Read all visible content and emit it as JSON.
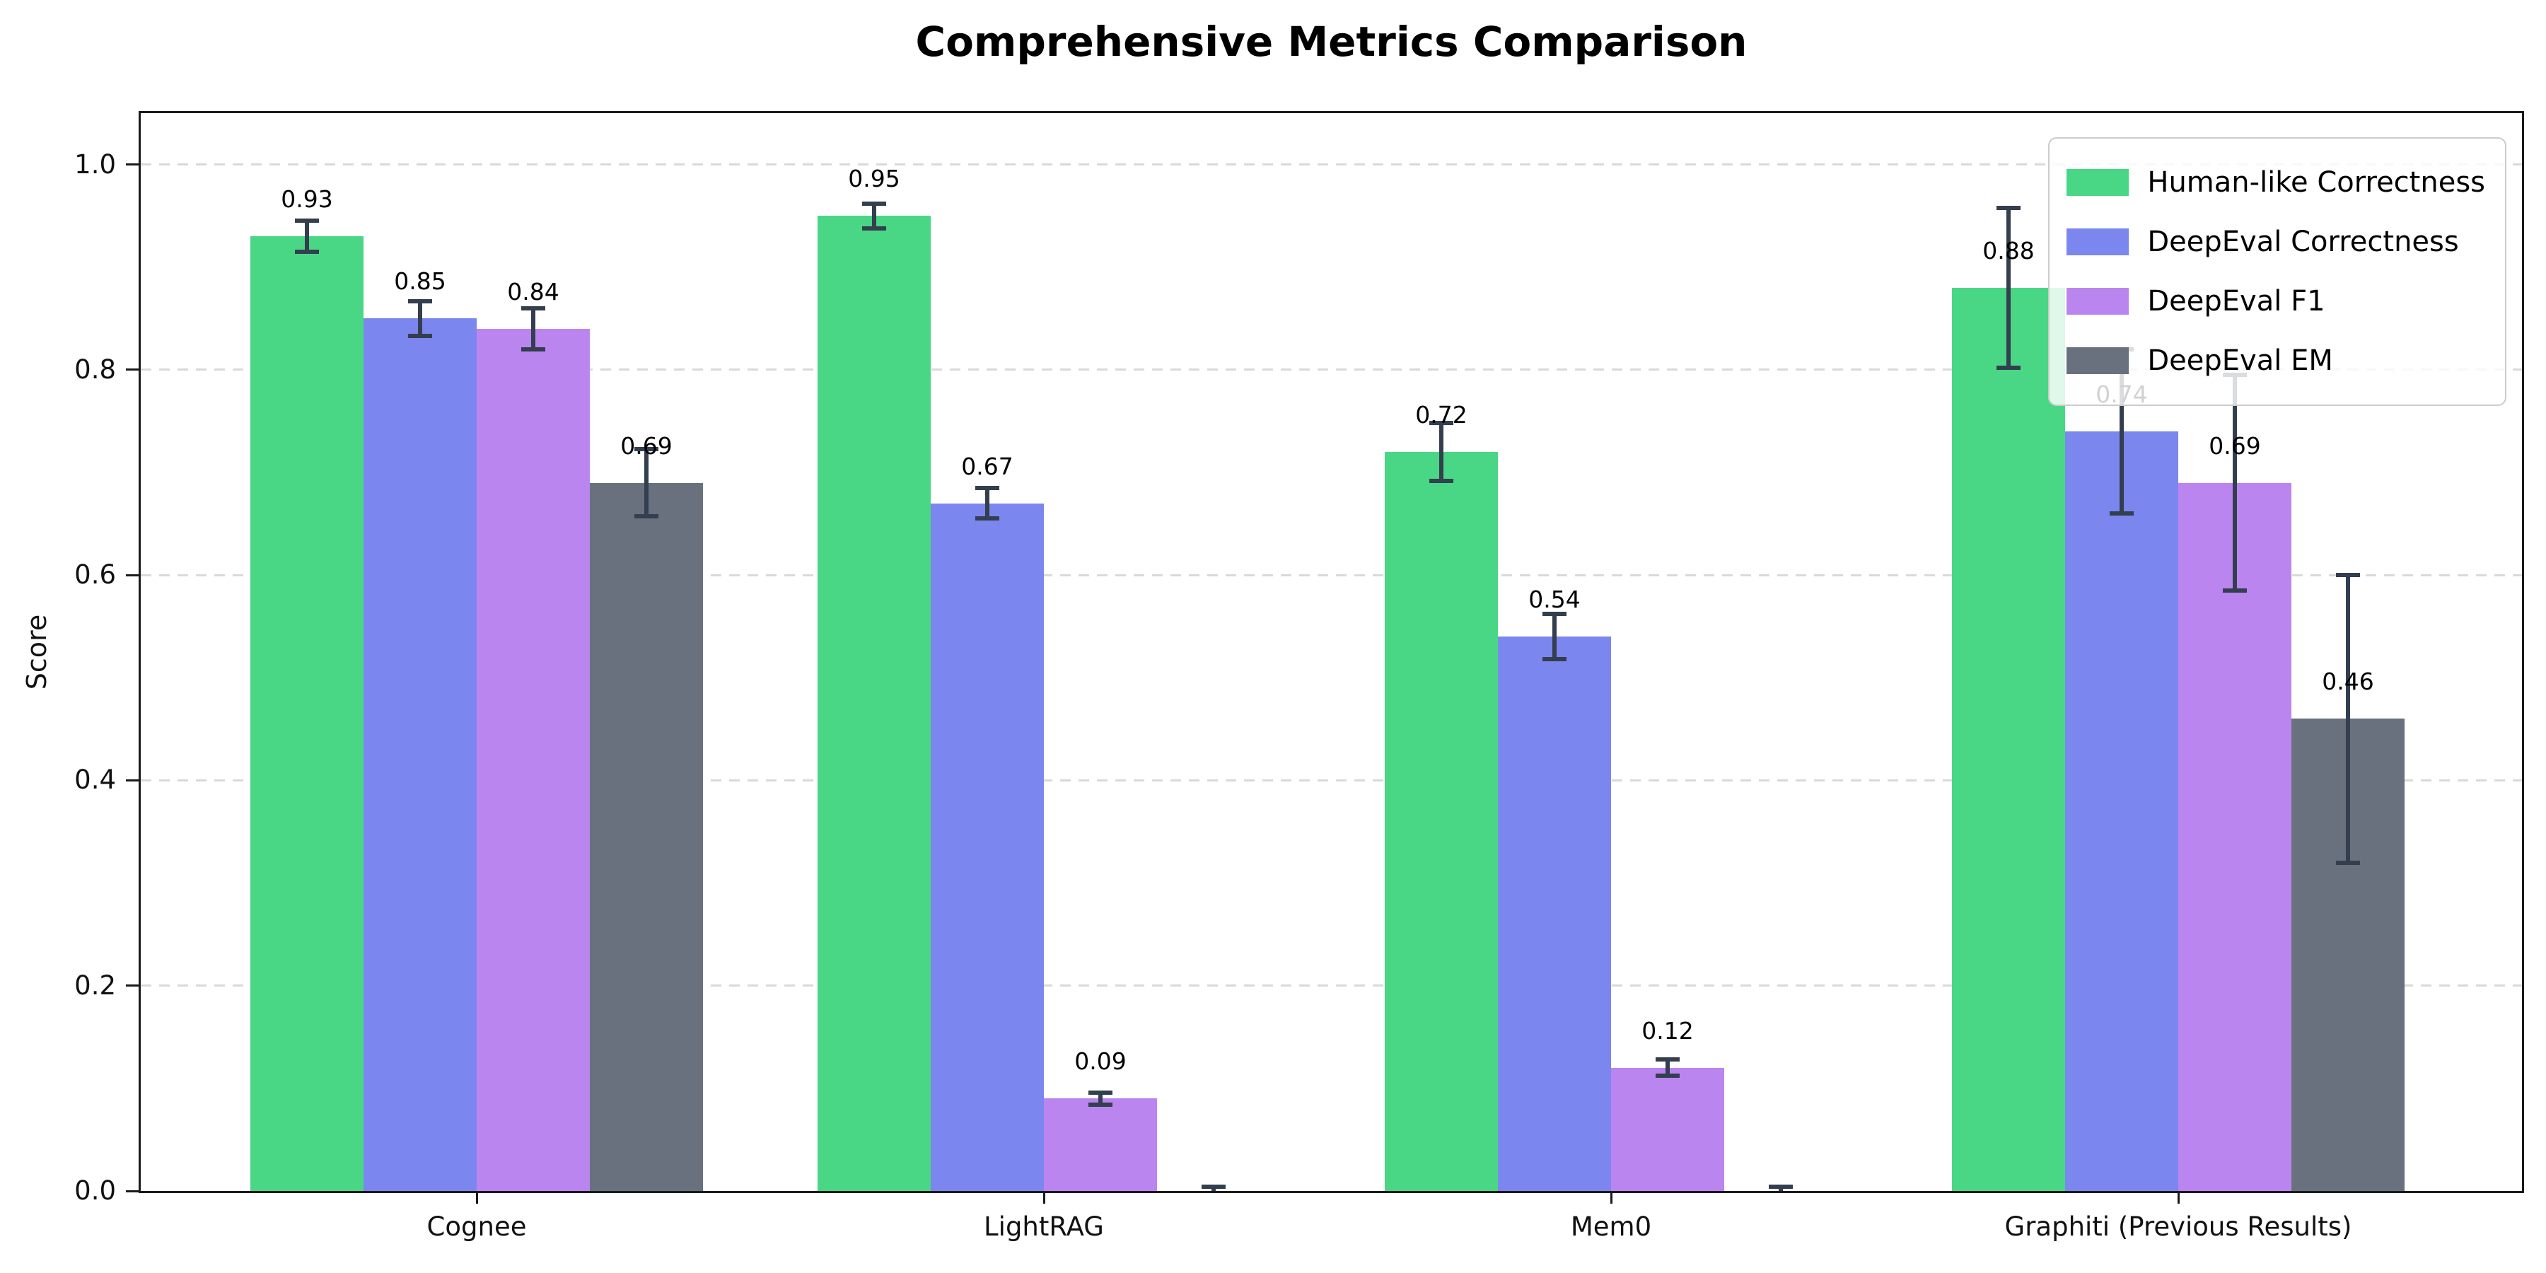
{
  "chart_data": {
    "type": "bar",
    "title": "Comprehensive Metrics Comparison",
    "ylabel": "Score",
    "categories": [
      "Cognee",
      "LightRAG",
      "Mem0",
      "Graphiti (Previous Results)"
    ],
    "series": [
      {
        "name": "Human-like Correctness",
        "color": "#49d786",
        "values": [
          0.93,
          0.95,
          0.72,
          0.88
        ],
        "errors": [
          0.015,
          0.012,
          0.028,
          0.078
        ],
        "bar_labels": [
          "0.93",
          "0.95",
          "0.72",
          "0.88"
        ]
      },
      {
        "name": "DeepEval Correctness",
        "color": "#7b86ee",
        "values": [
          0.85,
          0.67,
          0.54,
          0.74
        ],
        "errors": [
          0.017,
          0.015,
          0.022,
          0.08
        ],
        "bar_labels": [
          "0.85",
          "0.67",
          "0.54",
          "0.74"
        ]
      },
      {
        "name": "DeepEval F1",
        "color": "#bb85f0",
        "values": [
          0.84,
          0.09,
          0.12,
          0.69
        ],
        "errors": [
          0.02,
          0.006,
          0.008,
          0.105
        ],
        "bar_labels": [
          "0.84",
          "0.09",
          "0.12",
          "0.69"
        ]
      },
      {
        "name": "DeepEval EM",
        "color": "#69717f",
        "values": [
          0.69,
          0.0,
          0.0,
          0.46
        ],
        "errors": [
          0.033,
          0.004,
          0.004,
          0.14
        ],
        "bar_labels": [
          "0.69",
          "",
          "",
          "0.46"
        ]
      }
    ],
    "yticks": [
      "0.0",
      "0.2",
      "0.4",
      "0.6",
      "0.8",
      "1.0"
    ],
    "ylim": [
      0,
      1.05
    ],
    "grid": "horizontal-dashed",
    "legend_position": "upper-right",
    "colors": {
      "errorbar": "#333e4e",
      "gridline": "#d9d9d9",
      "spine": "#1a1a1a",
      "background": "#ffffff",
      "text": "#000000"
    }
  }
}
